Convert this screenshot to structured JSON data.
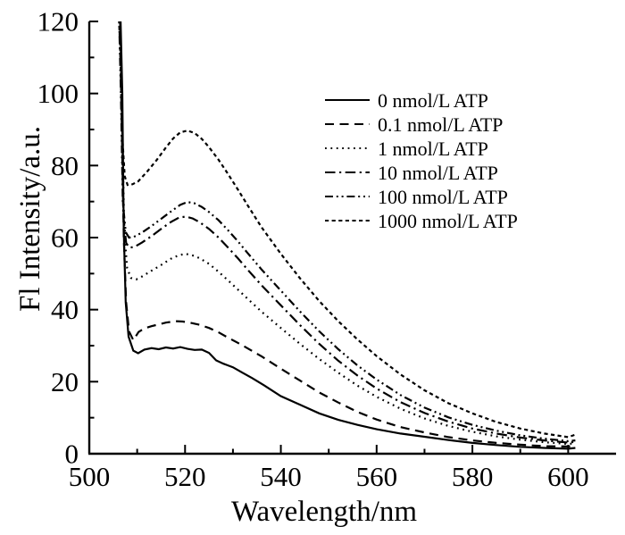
{
  "figure": {
    "background": "#ffffff",
    "ink_color": "#000000"
  },
  "chart_data": {
    "type": "line",
    "title": "",
    "xlabel": "Wavelength/nm",
    "ylabel": "Fl Intensity/a.u.",
    "xlim": [
      500,
      610
    ],
    "ylim": [
      0,
      120
    ],
    "x_major_ticks": [
      500,
      520,
      540,
      560,
      580,
      600
    ],
    "x_minor_ticks": [
      510,
      530,
      550,
      570,
      590
    ],
    "y_major_ticks": [
      0,
      20,
      40,
      60,
      80,
      100,
      120
    ],
    "y_minor_ticks": [
      10,
      30,
      50,
      70,
      90,
      110
    ],
    "grid": false,
    "legend_position": "upper-right-inside",
    "series": [
      {
        "name": "0 nmol/L ATP",
        "dash": "solid",
        "points": [
          [
            506.4,
            128
          ],
          [
            506.9,
            100
          ],
          [
            507.2,
            62
          ],
          [
            507.6,
            42
          ],
          [
            508.2,
            32.5
          ],
          [
            509.2,
            28.6
          ],
          [
            510.2,
            27.9
          ],
          [
            511.5,
            28.9
          ],
          [
            513.0,
            29.3
          ],
          [
            514.5,
            29.0
          ],
          [
            516.0,
            29.5
          ],
          [
            517.5,
            29.2
          ],
          [
            519.0,
            29.6
          ],
          [
            520.5,
            29.1
          ],
          [
            522.0,
            28.8
          ],
          [
            523.5,
            28.9
          ],
          [
            525.0,
            28.0
          ],
          [
            526.5,
            25.9
          ],
          [
            528.0,
            25.0
          ],
          [
            530.0,
            24.0
          ],
          [
            532.0,
            22.5
          ],
          [
            534.0,
            21.0
          ],
          [
            536.5,
            19.0
          ],
          [
            540.0,
            16.0
          ],
          [
            544.0,
            13.6
          ],
          [
            548.0,
            11.2
          ],
          [
            552.0,
            9.4
          ],
          [
            556.0,
            8.0
          ],
          [
            560.0,
            6.8
          ],
          [
            565.0,
            5.6
          ],
          [
            570.0,
            4.7
          ],
          [
            575.0,
            3.8
          ],
          [
            580.0,
            3.0
          ],
          [
            585.0,
            2.4
          ],
          [
            590.0,
            1.9
          ],
          [
            595.0,
            1.6
          ],
          [
            600.0,
            1.4
          ],
          [
            601.5,
            1.6
          ]
        ]
      },
      {
        "name": "0.1 nmol/L ATP",
        "dash": "dashed",
        "points": [
          [
            506.3,
            128
          ],
          [
            506.8,
            98
          ],
          [
            507.2,
            60
          ],
          [
            507.7,
            42
          ],
          [
            508.3,
            34.0
          ],
          [
            509.2,
            31.5
          ],
          [
            510.3,
            33.8
          ],
          [
            511.5,
            34.8
          ],
          [
            513.0,
            35.4
          ],
          [
            514.5,
            35.9
          ],
          [
            516.0,
            36.4
          ],
          [
            518.0,
            36.8
          ],
          [
            519.5,
            36.7
          ],
          [
            521.0,
            36.4
          ],
          [
            523.0,
            35.8
          ],
          [
            525.0,
            34.9
          ],
          [
            527.0,
            33.7
          ],
          [
            529.0,
            32.2
          ],
          [
            531.0,
            30.8
          ],
          [
            533.0,
            29.3
          ],
          [
            536.0,
            27.0
          ],
          [
            540.0,
            23.6
          ],
          [
            544.0,
            20.3
          ],
          [
            548.0,
            17.0
          ],
          [
            552.0,
            14.2
          ],
          [
            556.0,
            11.6
          ],
          [
            560.0,
            9.5
          ],
          [
            565.0,
            7.4
          ],
          [
            570.0,
            5.9
          ],
          [
            575.0,
            4.6
          ],
          [
            580.0,
            3.7
          ],
          [
            585.0,
            3.0
          ],
          [
            590.0,
            2.5
          ],
          [
            595.0,
            2.1
          ],
          [
            600.0,
            2.0
          ],
          [
            601.5,
            2.2
          ]
        ]
      },
      {
        "name": "1 nmol/L ATP",
        "dash": "dotted",
        "points": [
          [
            506.2,
            128
          ],
          [
            506.8,
            95
          ],
          [
            507.3,
            62
          ],
          [
            507.9,
            51.5
          ],
          [
            508.7,
            48.8
          ],
          [
            509.8,
            48.4
          ],
          [
            511.0,
            49.2
          ],
          [
            513.0,
            50.8
          ],
          [
            515.0,
            52.4
          ],
          [
            517.0,
            54.1
          ],
          [
            518.5,
            55.0
          ],
          [
            520.0,
            55.5
          ],
          [
            521.5,
            55.1
          ],
          [
            523.0,
            54.3
          ],
          [
            525.0,
            52.7
          ],
          [
            527.0,
            50.5
          ],
          [
            529.0,
            48.1
          ],
          [
            531.0,
            45.6
          ],
          [
            533.0,
            43.1
          ],
          [
            536.0,
            39.4
          ],
          [
            540.0,
            34.9
          ],
          [
            544.0,
            30.5
          ],
          [
            548.0,
            26.3
          ],
          [
            552.0,
            22.5
          ],
          [
            556.0,
            18.9
          ],
          [
            560.0,
            15.8
          ],
          [
            565.0,
            12.5
          ],
          [
            570.0,
            9.8
          ],
          [
            575.0,
            7.7
          ],
          [
            580.0,
            6.1
          ],
          [
            585.0,
            4.8
          ],
          [
            590.0,
            3.9
          ],
          [
            595.0,
            3.2
          ],
          [
            600.0,
            2.7
          ],
          [
            601.5,
            2.9
          ]
        ]
      },
      {
        "name": "10 nmol/L ATP",
        "dash": "dash-dot",
        "points": [
          [
            506.2,
            128
          ],
          [
            506.7,
            98
          ],
          [
            507.1,
            66
          ],
          [
            507.7,
            58.5
          ],
          [
            508.4,
            57.2
          ],
          [
            509.4,
            57.4
          ],
          [
            511.0,
            58.6
          ],
          [
            513.0,
            60.4
          ],
          [
            515.0,
            62.4
          ],
          [
            517.0,
            64.3
          ],
          [
            518.8,
            65.6
          ],
          [
            520.2,
            65.8
          ],
          [
            521.6,
            65.3
          ],
          [
            523.0,
            64.3
          ],
          [
            525.0,
            62.4
          ],
          [
            527.0,
            60.0
          ],
          [
            529.0,
            57.2
          ],
          [
            531.0,
            54.3
          ],
          [
            533.0,
            51.2
          ],
          [
            536.0,
            46.7
          ],
          [
            540.0,
            41.2
          ],
          [
            544.0,
            35.7
          ],
          [
            548.0,
            30.5
          ],
          [
            552.0,
            25.8
          ],
          [
            556.0,
            21.7
          ],
          [
            560.0,
            18.1
          ],
          [
            565.0,
            14.3
          ],
          [
            570.0,
            11.3
          ],
          [
            575.0,
            8.9
          ],
          [
            580.0,
            7.0
          ],
          [
            585.0,
            5.6
          ],
          [
            590.0,
            4.5
          ],
          [
            595.0,
            3.7
          ],
          [
            600.0,
            3.1
          ],
          [
            601.5,
            3.3
          ]
        ]
      },
      {
        "name": "100 nmol/L ATP",
        "dash": "dash-dot-dot",
        "points": [
          [
            506.1,
            128
          ],
          [
            506.6,
            100
          ],
          [
            507.0,
            70
          ],
          [
            507.6,
            61.5
          ],
          [
            508.3,
            60.0
          ],
          [
            509.3,
            60.2
          ],
          [
            511.0,
            61.4
          ],
          [
            513.0,
            63.2
          ],
          [
            515.0,
            65.2
          ],
          [
            517.0,
            67.2
          ],
          [
            519.0,
            69.1
          ],
          [
            520.5,
            69.9
          ],
          [
            522.0,
            69.5
          ],
          [
            523.5,
            68.5
          ],
          [
            525.0,
            67.1
          ],
          [
            527.0,
            64.8
          ],
          [
            529.0,
            62.0
          ],
          [
            531.0,
            59.0
          ],
          [
            533.0,
            55.8
          ],
          [
            536.0,
            51.1
          ],
          [
            540.0,
            45.3
          ],
          [
            544.0,
            39.5
          ],
          [
            548.0,
            34.0
          ],
          [
            552.0,
            29.0
          ],
          [
            556.0,
            24.5
          ],
          [
            560.0,
            20.6
          ],
          [
            565.0,
            16.3
          ],
          [
            570.0,
            12.8
          ],
          [
            575.0,
            10.1
          ],
          [
            580.0,
            8.0
          ],
          [
            585.0,
            6.4
          ],
          [
            590.0,
            5.1
          ],
          [
            595.0,
            4.2
          ],
          [
            600.0,
            3.5
          ],
          [
            601.5,
            3.7
          ]
        ]
      },
      {
        "name": "1000 nmol/L ATP",
        "dash": "short-dash",
        "points": [
          [
            506.0,
            128
          ],
          [
            506.5,
            110
          ],
          [
            506.9,
            88
          ],
          [
            507.4,
            77
          ],
          [
            508.0,
            74.6
          ],
          [
            509.0,
            74.8
          ],
          [
            510.2,
            75.6
          ],
          [
            512.0,
            78.2
          ],
          [
            514.0,
            81.4
          ],
          [
            516.0,
            85.0
          ],
          [
            517.5,
            87.5
          ],
          [
            519.0,
            89.2
          ],
          [
            520.5,
            89.7
          ],
          [
            522.0,
            89.0
          ],
          [
            523.5,
            87.4
          ],
          [
            525.0,
            85.1
          ],
          [
            527.0,
            81.6
          ],
          [
            529.0,
            77.6
          ],
          [
            531.0,
            73.4
          ],
          [
            533.0,
            69.1
          ],
          [
            536.0,
            62.8
          ],
          [
            540.0,
            55.5
          ],
          [
            544.0,
            48.7
          ],
          [
            548.0,
            42.4
          ],
          [
            552.0,
            36.8
          ],
          [
            556.0,
            31.7
          ],
          [
            560.0,
            27.1
          ],
          [
            565.0,
            22.0
          ],
          [
            570.0,
            17.6
          ],
          [
            575.0,
            14.0
          ],
          [
            580.0,
            11.2
          ],
          [
            585.0,
            8.8
          ],
          [
            590.0,
            7.0
          ],
          [
            595.0,
            5.6
          ],
          [
            600.0,
            4.6
          ],
          [
            601.5,
            5.3
          ]
        ]
      }
    ]
  }
}
